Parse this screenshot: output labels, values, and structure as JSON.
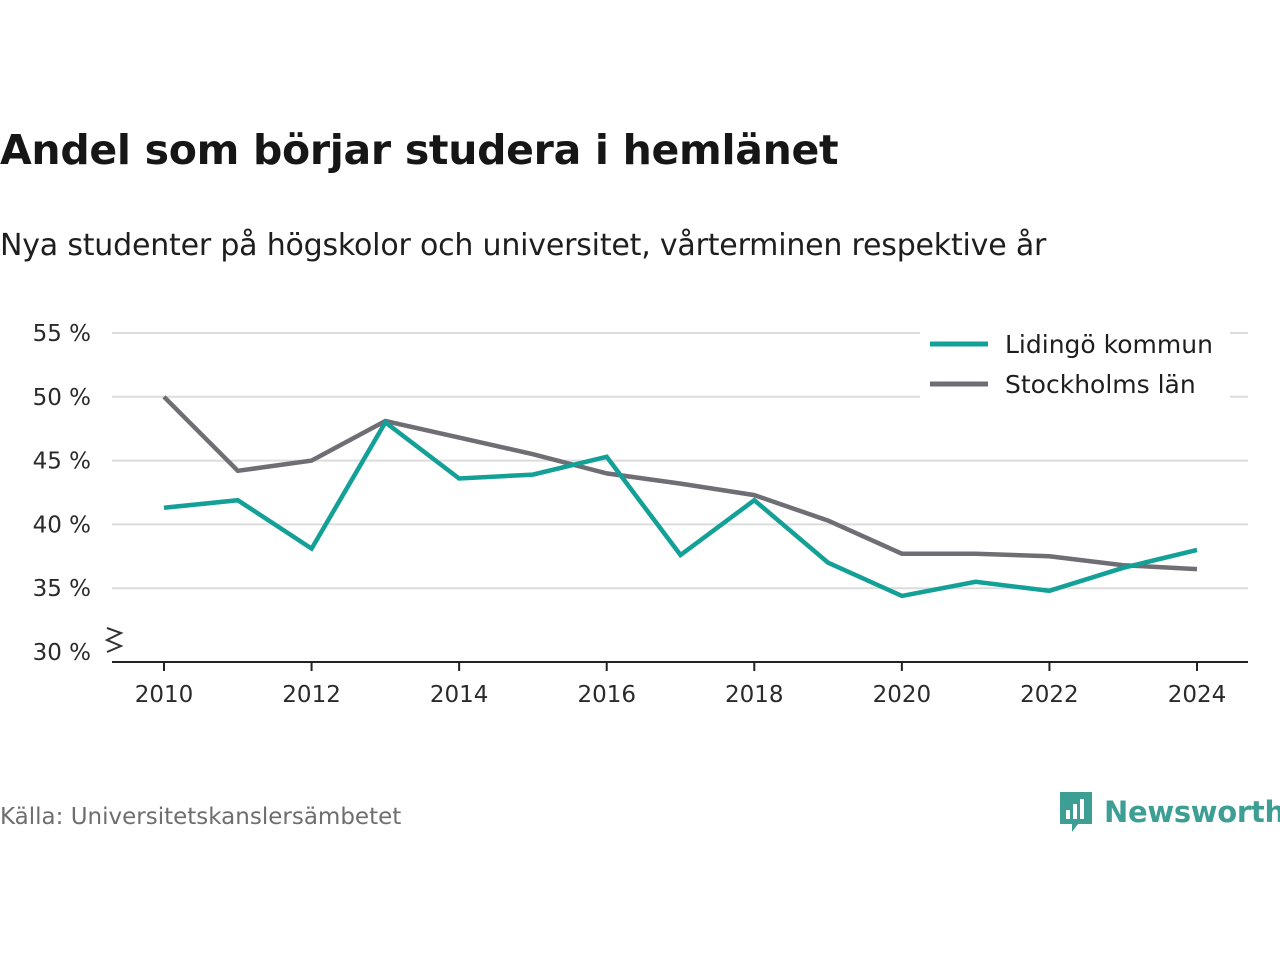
{
  "chart_data": {
    "type": "line",
    "title": "Andel som börjar studera i hemlänet",
    "subtitle": "Nya studenter på högskolor och universitet, vårterminen respektive år",
    "x": [
      2010,
      2011,
      2012,
      2013,
      2014,
      2015,
      2016,
      2017,
      2018,
      2019,
      2020,
      2021,
      2022,
      2023,
      2024
    ],
    "x_ticks": [
      "2010",
      "2012",
      "2014",
      "2016",
      "2018",
      "2020",
      "2022",
      "2024"
    ],
    "y_ticks": [
      "30 %",
      "35 %",
      "40 %",
      "45 %",
      "50 %",
      "55 %"
    ],
    "ylim": [
      30,
      55
    ],
    "xlim": [
      2010,
      2024
    ],
    "grid": true,
    "legend_position": "top-right",
    "series": [
      {
        "name": "Lidingö kommun",
        "color": "#13a096",
        "values": [
          41.3,
          41.9,
          38.1,
          48.0,
          43.6,
          43.9,
          45.3,
          37.6,
          41.9,
          37.0,
          34.4,
          35.5,
          34.8,
          36.6,
          38.0
        ]
      },
      {
        "name": "Stockholms län",
        "color": "#6f6e75",
        "values": [
          50.0,
          44.2,
          45.0,
          48.1,
          46.8,
          45.5,
          44.0,
          43.2,
          42.3,
          40.3,
          37.7,
          37.7,
          37.5,
          36.8,
          36.5
        ]
      }
    ]
  },
  "source": "Källa: Universitetskanslersämbetet",
  "brand": {
    "name": "Newsworthy",
    "color": "#3d9e94",
    "icon": "chart-bubble-icon"
  }
}
